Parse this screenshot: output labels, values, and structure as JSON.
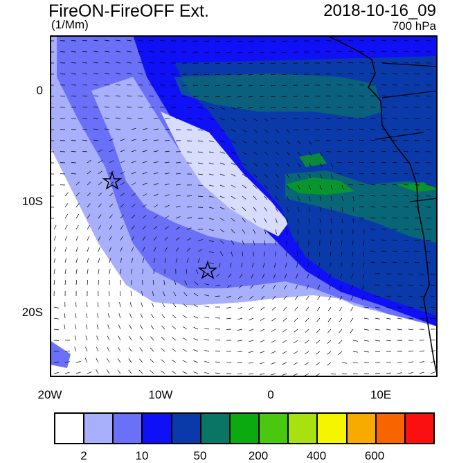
{
  "header": {
    "title": "FireON-FireOFF Ext.",
    "date": "2018-10-16_09",
    "units": "(1/Mm)",
    "level": "700 hPa"
  },
  "map": {
    "longitude_labels": [
      "20W",
      "10W",
      "0",
      "10E"
    ],
    "latitude_labels": [
      "0",
      "10S",
      "20S"
    ],
    "extent": {
      "lon": [
        -20,
        15
      ],
      "lat": [
        -24.5,
        5
      ]
    },
    "markers": [
      {
        "name": "star-marker",
        "lon": -14.5,
        "lat": -8
      },
      {
        "name": "star-marker",
        "lon": -5.8,
        "lat": -16
      }
    ]
  },
  "colorbar": {
    "colors": [
      "#ffffff",
      "#a8b0fb",
      "#6a70f7",
      "#1010f6",
      "#0a3aa9",
      "#0a7565",
      "#0aaa10",
      "#4ac810",
      "#a8e010",
      "#f5f500",
      "#f7aa00",
      "#f86400",
      "#fa1010"
    ],
    "labels": [
      "2",
      "10",
      "50",
      "200",
      "400",
      "600"
    ]
  }
}
